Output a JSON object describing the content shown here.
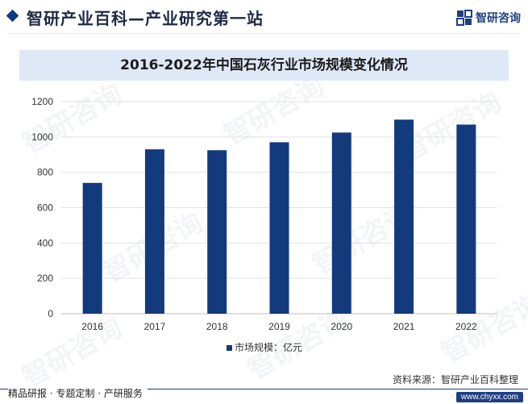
{
  "header": {
    "site_title": "智研产业百科—产业研究第一站",
    "brand_name": "智研咨询"
  },
  "footer": {
    "source": "资料来源：智研产业百科整理",
    "slogan": "精品研报 · 专题定制 · 产研服务",
    "url": "www.chyxx.com"
  },
  "watermarks": [
    "智研咨询"
  ],
  "colors": {
    "bar": "#123a7c",
    "title_band": "#dfe8f6",
    "brand": "#1f3f82"
  },
  "chart_data": {
    "type": "bar",
    "title": "2016-2022年中国石灰行业市场规模变化情况",
    "categories": [
      "2016",
      "2017",
      "2018",
      "2019",
      "2020",
      "2021",
      "2022"
    ],
    "series": [
      {
        "name": "市场规模：亿元",
        "values": [
          740,
          930,
          925,
          970,
          1025,
          1098,
          1070
        ]
      }
    ],
    "yticks": [
      "0",
      "200",
      "400",
      "600",
      "800",
      "1000",
      "1200"
    ],
    "ylim": [
      0,
      1200
    ],
    "grid": true,
    "legend_position": "bottom"
  }
}
